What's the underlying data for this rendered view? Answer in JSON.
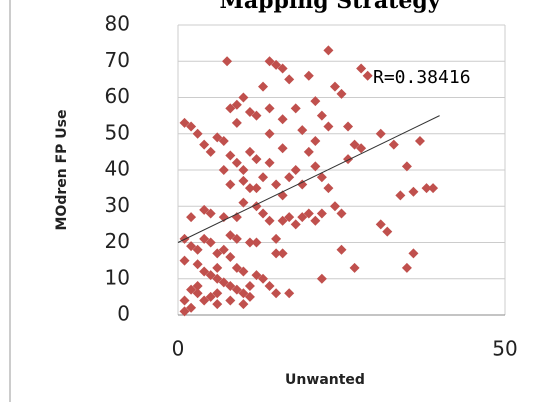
{
  "chart_data": {
    "type": "scatter",
    "title": "Mapping Strategy",
    "x_label": "Unwanted",
    "y_label": "MOdren FP Use",
    "annotation": "R=0.38416",
    "xlim": [
      0,
      50
    ],
    "xticks": [
      0,
      50
    ],
    "ylim": [
      0,
      80
    ],
    "yticks": [
      0,
      10,
      20,
      30,
      40,
      50,
      60,
      70,
      80
    ],
    "grid": true,
    "series": [
      {
        "color": "#c0504d",
        "x": [
          7.5,
          14,
          15,
          16,
          23,
          24,
          28,
          29,
          20,
          17,
          25,
          13,
          21,
          10,
          9,
          8,
          11,
          12,
          14,
          16,
          18,
          22,
          26,
          28,
          31,
          33,
          37,
          35,
          36,
          38,
          39,
          34,
          32,
          31,
          35,
          36,
          27,
          25,
          22,
          17,
          1,
          2,
          3,
          4,
          5,
          6,
          7,
          8,
          9,
          10,
          11,
          12,
          13,
          14,
          15,
          16,
          17,
          18,
          19,
          20,
          21,
          22,
          23,
          24,
          25,
          26,
          27,
          20,
          19,
          18,
          17,
          16,
          21,
          22,
          14,
          13,
          12,
          10,
          9,
          8,
          7,
          5,
          4,
          2,
          1,
          2,
          3,
          4,
          5,
          6,
          7,
          8,
          3,
          4,
          5,
          6,
          7,
          8,
          9,
          10,
          11,
          2,
          3,
          4,
          5,
          6,
          1,
          2,
          1,
          3,
          6,
          9,
          10,
          12,
          13,
          14,
          15,
          15,
          16,
          11,
          9,
          11,
          6,
          8,
          10,
          12,
          15,
          1,
          12,
          14,
          16,
          19,
          21,
          23,
          9,
          10,
          11,
          8,
          7
        ],
        "values": [
          70,
          70,
          69,
          68,
          73,
          63,
          68,
          66,
          66,
          65,
          61,
          63,
          59,
          60,
          58,
          57,
          56,
          55,
          57,
          54,
          57,
          55,
          52,
          46,
          50,
          47,
          48,
          41,
          34,
          35,
          35,
          33,
          23,
          25,
          13,
          17,
          13,
          18,
          10,
          6,
          53,
          52,
          50,
          47,
          45,
          49,
          48,
          44,
          42,
          40,
          45,
          43,
          38,
          42,
          36,
          33,
          38,
          40,
          36,
          45,
          41,
          38,
          35,
          30,
          28,
          43,
          47,
          28,
          27,
          25,
          27,
          26,
          26,
          28,
          26,
          28,
          30,
          31,
          27,
          22,
          27,
          28,
          29,
          27,
          21,
          19,
          18,
          21,
          20,
          17,
          18,
          16,
          14,
          12,
          11,
          10,
          9,
          8,
          7,
          6,
          5,
          7,
          6,
          4,
          5,
          3,
          4,
          2,
          1,
          8,
          13,
          13,
          12,
          11,
          10,
          8,
          6,
          17,
          17,
          20,
          21,
          8,
          6,
          4,
          3,
          20,
          21,
          15,
          35,
          50,
          46,
          51,
          48,
          52,
          53,
          37,
          35,
          36,
          40
        ]
      }
    ],
    "trendline": {
      "x": [
        0,
        40
      ],
      "y": [
        20,
        55
      ],
      "color": "#333333"
    }
  }
}
